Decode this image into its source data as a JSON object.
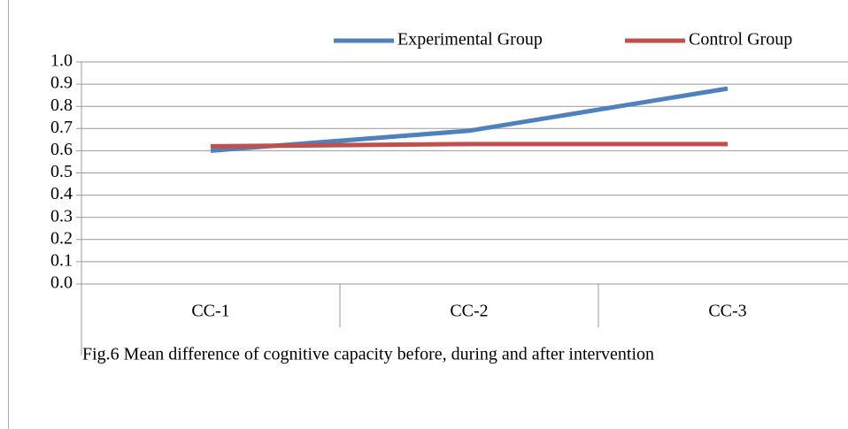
{
  "chart_data": {
    "type": "line",
    "caption": "Fig.6 Mean difference of cognitive capacity before, during and after intervention",
    "categories": [
      "CC-1",
      "CC-2",
      "CC-3"
    ],
    "series": [
      {
        "name": "Experimental Group",
        "color": "#4f81bd",
        "values": [
          0.6,
          0.69,
          0.88
        ]
      },
      {
        "name": "Control Group",
        "color": "#c0504d",
        "values": [
          0.62,
          0.63,
          0.63
        ]
      }
    ],
    "ylim": [
      0,
      1
    ],
    "yticks": [
      {
        "value": 0,
        "label": "0.0"
      },
      0.1,
      0.2,
      0.3,
      0.4,
      0.5,
      0.6,
      0.7,
      0.8,
      0.9,
      {
        "value": 1,
        "label": "1.0"
      }
    ],
    "grid": true,
    "legend": "top"
  }
}
